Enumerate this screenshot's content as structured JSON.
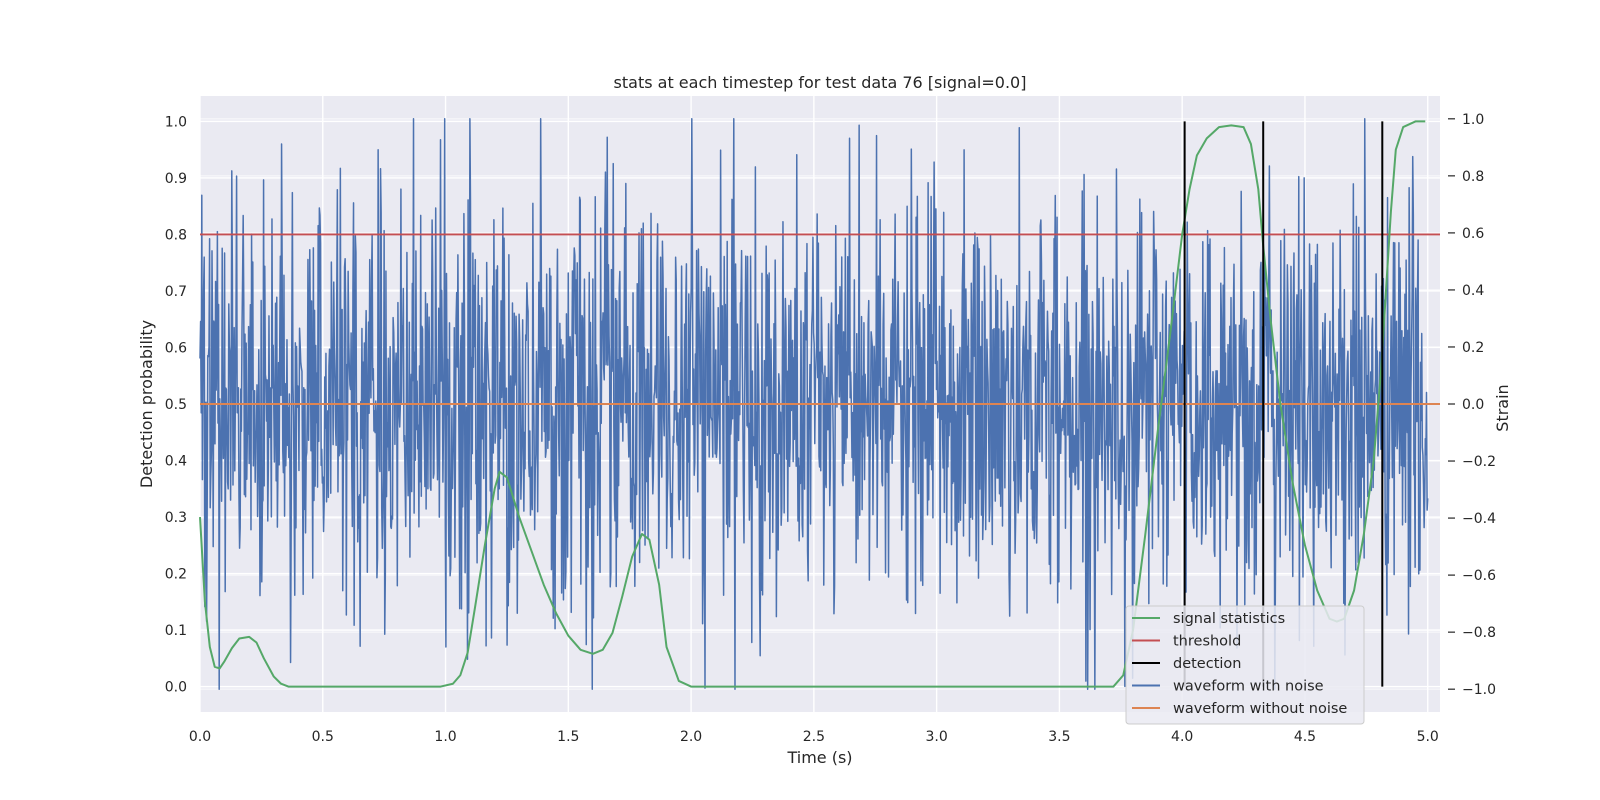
{
  "chart_data": {
    "type": "line",
    "title": "stats at each timestep for test data 76 [signal=0.0]",
    "xlabel": "Time (s)",
    "ylabel": "Detection probability",
    "y2label": "Strain",
    "xlim": [
      0.0,
      5.05
    ],
    "ylim": [
      -0.045,
      1.045
    ],
    "y2lim": [
      -1.08,
      1.08
    ],
    "xticks": [
      "0.0",
      "0.5",
      "1.0",
      "1.5",
      "2.0",
      "2.5",
      "3.0",
      "3.5",
      "4.0",
      "4.5",
      "5.0"
    ],
    "xtick_values": [
      0,
      0.5,
      1,
      1.5,
      2,
      2.5,
      3,
      3.5,
      4,
      4.5,
      5
    ],
    "yticks": [
      "0.0",
      "0.1",
      "0.2",
      "0.3",
      "0.4",
      "0.5",
      "0.6",
      "0.7",
      "0.8",
      "0.9",
      "1.0"
    ],
    "ytick_values": [
      0,
      0.1,
      0.2,
      0.3,
      0.4,
      0.5,
      0.6,
      0.7,
      0.8,
      0.9,
      1.0
    ],
    "y2ticks": [
      "−1.0",
      "−0.8",
      "−0.6",
      "−0.4",
      "−0.2",
      "0.0",
      "0.2",
      "0.4",
      "0.6",
      "0.8",
      "1.0"
    ],
    "y2tick_values": [
      -1.0,
      -0.8,
      -0.6,
      -0.4,
      -0.2,
      0,
      0.2,
      0.4,
      0.6,
      0.8,
      1.0
    ],
    "grid": true,
    "legend_position": "bottom-right",
    "colors": {
      "signal_statistics": "#55a868",
      "threshold": "#c44e52",
      "detection": "#000000",
      "waveform_with_noise": "#4c72b0",
      "waveform_without_noise": "#dd8452",
      "background": "#eaeaf2",
      "grid": "#ffffff"
    },
    "series": [
      {
        "name": "signal statistics",
        "axis": "left",
        "x": [
          0.0,
          0.02,
          0.04,
          0.06,
          0.08,
          0.1,
          0.13,
          0.16,
          0.2,
          0.23,
          0.26,
          0.3,
          0.33,
          0.36,
          0.4,
          0.5,
          0.7,
          0.9,
          0.98,
          1.03,
          1.06,
          1.09,
          1.12,
          1.16,
          1.2,
          1.22,
          1.25,
          1.3,
          1.35,
          1.4,
          1.45,
          1.5,
          1.55,
          1.6,
          1.64,
          1.68,
          1.72,
          1.76,
          1.8,
          1.83,
          1.87,
          1.9,
          1.95,
          2.0,
          2.5,
          3.0,
          3.5,
          3.72,
          3.76,
          3.8,
          3.85,
          3.9,
          3.95,
          4.0,
          4.03,
          4.06,
          4.1,
          4.15,
          4.2,
          4.25,
          4.28,
          4.31,
          4.33,
          4.36,
          4.4,
          4.45,
          4.5,
          4.55,
          4.6,
          4.63,
          4.66,
          4.7,
          4.74,
          4.78,
          4.81,
          4.83,
          4.85,
          4.87,
          4.9,
          4.95,
          4.99
        ],
        "values": [
          0.3,
          0.15,
          0.07,
          0.035,
          0.032,
          0.045,
          0.068,
          0.085,
          0.088,
          0.078,
          0.05,
          0.018,
          0.005,
          0.0,
          0.0,
          0.0,
          0.0,
          0.0,
          0.0,
          0.005,
          0.02,
          0.06,
          0.14,
          0.25,
          0.35,
          0.38,
          0.37,
          0.3,
          0.24,
          0.18,
          0.13,
          0.09,
          0.065,
          0.058,
          0.065,
          0.095,
          0.16,
          0.23,
          0.27,
          0.26,
          0.18,
          0.07,
          0.01,
          0.0,
          0.0,
          0.0,
          0.0,
          0.0,
          0.02,
          0.1,
          0.27,
          0.45,
          0.62,
          0.8,
          0.88,
          0.94,
          0.97,
          0.99,
          0.993,
          0.99,
          0.96,
          0.88,
          0.78,
          0.65,
          0.5,
          0.36,
          0.25,
          0.17,
          0.12,
          0.115,
          0.12,
          0.17,
          0.27,
          0.4,
          0.56,
          0.7,
          0.84,
          0.95,
          0.99,
          1.0,
          1.0
        ]
      },
      {
        "name": "threshold",
        "axis": "left",
        "x": [
          0.0,
          5.05
        ],
        "values": [
          0.8,
          0.8
        ]
      },
      {
        "name": "detection",
        "axis": "left",
        "x": [
          4.01,
          4.33,
          4.815
        ],
        "values": [
          1.0,
          1.0,
          1.0
        ]
      },
      {
        "name": "waveform with noise",
        "axis": "right",
        "x_range": [
          0.0,
          5.0
        ],
        "samples": 2048,
        "amplitude_approx": 0.35,
        "max_abs_approx": 1.0
      },
      {
        "name": "waveform without noise",
        "axis": "right",
        "x": [
          0.0,
          5.05
        ],
        "values": [
          0.0,
          0.0
        ]
      }
    ],
    "legend": [
      "signal statistics",
      "threshold",
      "detection",
      "waveform with noise",
      "waveform without noise"
    ]
  }
}
